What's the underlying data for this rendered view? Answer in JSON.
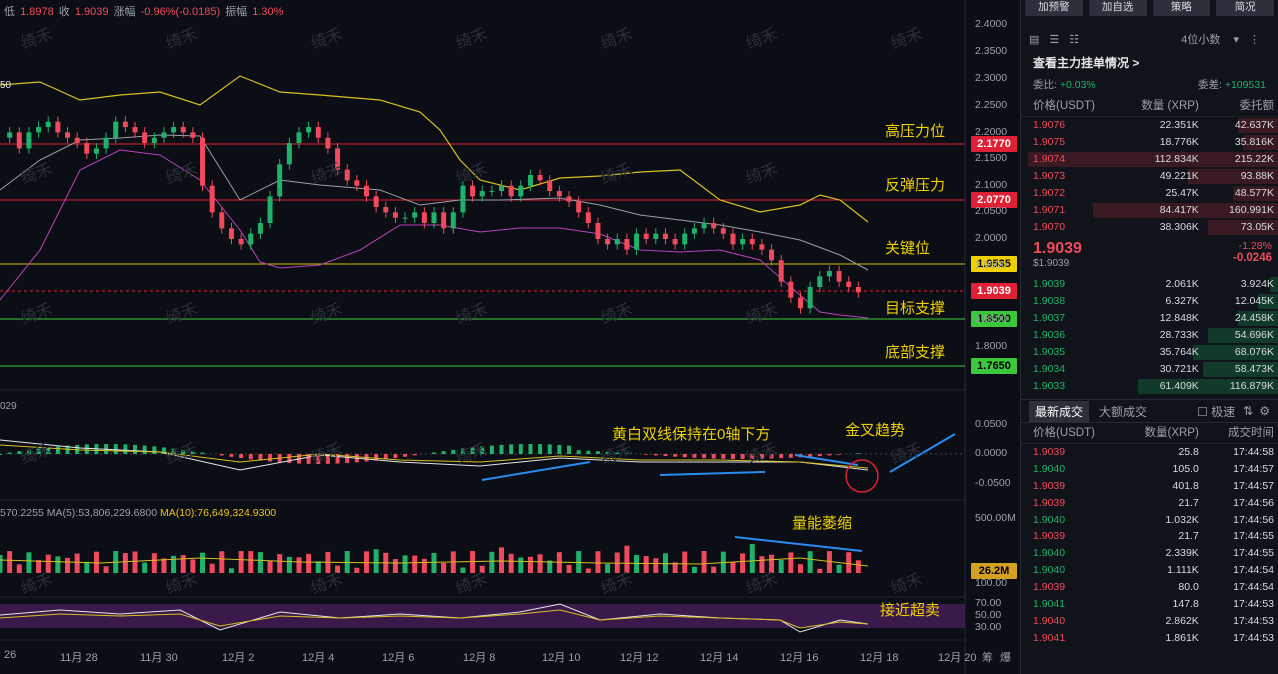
{
  "header": {
    "low_label": "低",
    "low": "1.8978",
    "close_label": "收",
    "close": "1.9039",
    "chg_label": "涨幅",
    "chg": "-0.96%(-0.0185)",
    "amp_label": "振幅",
    "amp": "1.30%"
  },
  "ma_label": "50",
  "macd_label": "029",
  "vol_info": {
    "left": "570.2255",
    "ma5": "MA(5):53,806,229.6800",
    "ma10": "MA(10):76,649,324.9300"
  },
  "annotations": {
    "resistance_high": "高压力位",
    "rebound": "反弹压力",
    "key": "关键位",
    "target": "目标支撑",
    "bottom": "底部支撑",
    "macd_note": "黄白双线保持在0轴下方",
    "golden": "金叉趋势",
    "vol_note": "量能萎缩",
    "oversold": "接近超卖"
  },
  "price_tags": [
    {
      "v": "2.1770",
      "bg": "#e02035",
      "fg": "#ffffff"
    },
    {
      "v": "2.0770",
      "bg": "#e02035",
      "fg": "#ffffff"
    },
    {
      "v": "1.9535",
      "bg": "#f0d000",
      "fg": "#000000"
    },
    {
      "v": "1.9039",
      "bg": "#e02035",
      "fg": "#ffffff"
    },
    {
      "v": "1.8500",
      "bg": "#3cc83c",
      "fg": "#000000"
    },
    {
      "v": "1.7650",
      "bg": "#3cc83c",
      "fg": "#000000"
    }
  ],
  "vol_tag": "26.2M",
  "y_labels": [
    "2.4000",
    "2.3500",
    "2.3000",
    "2.2500",
    "2.2000",
    "2.1500",
    "2.1000",
    "2.0500",
    "2.0000",
    "1.9500",
    "1.8500",
    "1.8000"
  ],
  "macd_y": [
    "0.0500",
    "0.0000",
    "-0.0500"
  ],
  "vol_y": [
    "500.00M"
  ],
  "rsi_y": [
    "100.00",
    "70.00",
    "50.00",
    "30.00"
  ],
  "x_labels": [
    "26",
    "11月 28",
    "11月 30",
    "12月 2",
    "12月 4",
    "12月 6",
    "12月 8",
    "12月 10",
    "12月 12",
    "12月 14",
    "12月 16",
    "12月 18",
    "12月 20"
  ],
  "bottom_icons": [
    "筹",
    "爆"
  ],
  "watermark": "绮禾",
  "side": {
    "buttons": [
      "加预警",
      "加自选",
      "策略",
      "简况"
    ],
    "decimals": "4位小数",
    "main_force": "查看主力挂单情况 >",
    "ratio_label": "委比:",
    "ratio": "+0.03%",
    "diff_label": "委差:",
    "diff": "+109531",
    "headers": [
      "价格(USDT)",
      "数量 (XRP)",
      "委托额"
    ],
    "asks": [
      [
        "1.9076",
        "22.351K",
        "42.637K",
        40
      ],
      [
        "1.9075",
        "18.776K",
        "35.816K",
        35
      ],
      [
        "1.9074",
        "112.834K",
        "215.22K",
        250
      ],
      [
        "1.9073",
        "49.221K",
        "93.88K",
        90
      ],
      [
        "1.9072",
        "25.47K",
        "48.577K",
        45
      ],
      [
        "1.9071",
        "84.417K",
        "160.991K",
        185
      ],
      [
        "1.9070",
        "38.306K",
        "73.05K",
        70
      ]
    ],
    "last": "1.9039",
    "last_sub": "$1.9039",
    "last_pct": "-1.28%",
    "last_chg": "-0.0246",
    "bids": [
      [
        "1.9039",
        "2.061K",
        "3.924K",
        8
      ],
      [
        "1.9038",
        "6.327K",
        "12.045K",
        20
      ],
      [
        "1.9037",
        "12.848K",
        "24.458K",
        40
      ],
      [
        "1.9036",
        "28.733K",
        "54.696K",
        70
      ],
      [
        "1.9035",
        "35.764K",
        "68.076K",
        85
      ],
      [
        "1.9034",
        "30.721K",
        "58.473K",
        75
      ],
      [
        "1.9033",
        "61.409K",
        "116.879K",
        140
      ]
    ],
    "tabs": [
      "最新成交",
      "大额成交",
      "极速"
    ],
    "trade_headers": [
      "价格(USDT)",
      "数量(XRP)",
      "成交时间"
    ],
    "trades": [
      [
        "1.9039",
        "25.8",
        "17:44:58",
        "r"
      ],
      [
        "1.9040",
        "105.0",
        "17:44:57",
        "g"
      ],
      [
        "1.9039",
        "401.8",
        "17:44:57",
        "r"
      ],
      [
        "1.9039",
        "21.7",
        "17:44:56",
        "r"
      ],
      [
        "1.9040",
        "1.032K",
        "17:44:56",
        "g"
      ],
      [
        "1.9039",
        "21.7",
        "17:44:55",
        "r"
      ],
      [
        "1.9040",
        "2.339K",
        "17:44:55",
        "g"
      ],
      [
        "1.9040",
        "1.111K",
        "17:44:54",
        "g"
      ],
      [
        "1.9039",
        "80.0",
        "17:44:54",
        "r"
      ],
      [
        "1.9041",
        "147.8",
        "17:44:53",
        "g"
      ],
      [
        "1.9040",
        "2.862K",
        "17:44:53",
        "r"
      ],
      [
        "1.9041",
        "1.861K",
        "17:44:53",
        "r"
      ]
    ]
  }
}
